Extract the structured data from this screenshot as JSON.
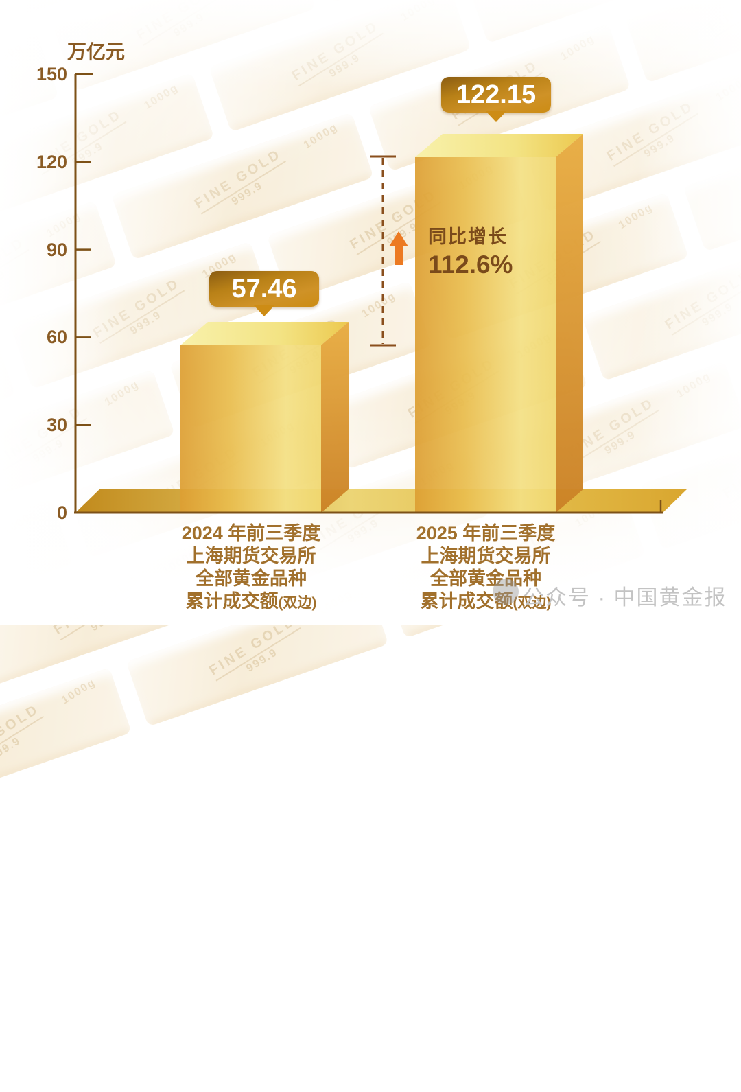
{
  "unit_label": "万亿元",
  "axis": {
    "ticks": [
      "150",
      "120",
      "90",
      "60",
      "30",
      "0"
    ]
  },
  "bars": [
    {
      "value": "57.46",
      "line1": "2024 年前三季度",
      "line2": "上海期货交易所",
      "line3": "全部黄金品种",
      "line4": "累计成交额",
      "line4_suffix": "(双边)"
    },
    {
      "value": "122.15",
      "line1": "2025 年前三季度",
      "line2": "上海期货交易所",
      "line3": "全部黄金品种",
      "line4": "累计成交额",
      "line4_suffix": "(双边)"
    }
  ],
  "annotation": {
    "label": "同比增长",
    "value": "112.6%"
  },
  "watermark": "公众号 · 中国黄金报",
  "background": {
    "stamp_line1": "FINE",
    "stamp_line2": "GOLD",
    "stamp_purity": "999.9",
    "weight": "1000g"
  },
  "colors": {
    "axis_brown": "#7d5117",
    "tick_label_brown": "#8a5b24",
    "category_brown": "#a1702c",
    "annotation_brown": "#7a4a1b",
    "arrow_orange": "#ec7a22",
    "pill_gold_dark": "#8a5c12",
    "pill_gold_light": "#cf9227",
    "bar_gold_front": "#eec45a",
    "bar_gold_side": "#d4912c",
    "bar_gold_top": "#f6efa3",
    "watermark_gray": "#c3c3c3"
  },
  "chart_data": {
    "type": "bar",
    "title": "",
    "ylabel": "万亿元",
    "ylim": [
      0,
      150
    ],
    "yticks": [
      0,
      30,
      60,
      90,
      120,
      150
    ],
    "categories": [
      "2024 年前三季度 上海期货交易所 全部黄金品种 累计成交额(双边)",
      "2025 年前三季度 上海期货交易所 全部黄金品种 累计成交额(双边)"
    ],
    "values": [
      57.46,
      122.15
    ],
    "data_labels": [
      "57.46",
      "122.15"
    ],
    "annotation": "同比增长 112.6%",
    "legend": false,
    "grid": false,
    "bar_style": "3d-gold-block"
  }
}
